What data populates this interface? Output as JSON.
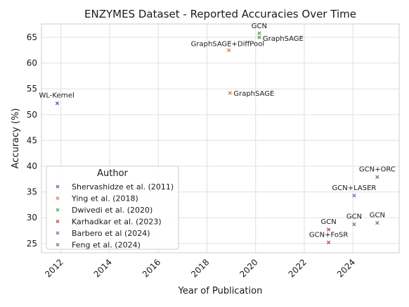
{
  "chart_data": {
    "type": "scatter",
    "title": "ENZYMES Dataset - Reported Accuracies Over Time",
    "xlabel": "Year of Publication",
    "ylabel": "Accuracy (%)",
    "xlim": [
      2011.2,
      2025.9
    ],
    "ylim": [
      23.2,
      67.6
    ],
    "x_ticks": [
      2012,
      2014,
      2016,
      2018,
      2020,
      2022,
      2024
    ],
    "y_ticks": [
      25,
      30,
      35,
      40,
      45,
      50,
      55,
      60,
      65
    ],
    "grid": true,
    "legend_title": "Author",
    "legend_position": "lower-left",
    "series": [
      {
        "name": "Shervashidze et al. (2011)",
        "color": "#4c72b0",
        "points": [
          {
            "x": 2011.85,
            "y": 52.2,
            "label": "WL-Kernel"
          }
        ]
      },
      {
        "name": "Ying et al. (2018)",
        "color": "#dd8452",
        "points": [
          {
            "x": 2018.9,
            "y": 62.5,
            "label": "GraphSAGE+DiffPool"
          },
          {
            "x": 2018.95,
            "y": 54.2,
            "label": "GraphSAGE"
          }
        ]
      },
      {
        "name": "Dwivedi et al. (2020)",
        "color": "#55a868",
        "points": [
          {
            "x": 2020.15,
            "y": 65.8,
            "label": "GCN"
          },
          {
            "x": 2020.15,
            "y": 65.0,
            "label": "GraphSAGE"
          }
        ]
      },
      {
        "name": "Karhadkar et al. (2023)",
        "color": "#c44e52",
        "points": [
          {
            "x": 2023.0,
            "y": 27.7,
            "label": "GCN"
          },
          {
            "x": 2023.0,
            "y": 25.2,
            "label": "GCN+FoSR"
          }
        ]
      },
      {
        "name": "Barbero et al (2024)",
        "color": "#8172b3",
        "points": [
          {
            "x": 2024.05,
            "y": 34.3,
            "label": "GCN+LASER"
          },
          {
            "x": 2024.05,
            "y": 28.7,
            "label": "GCN"
          }
        ]
      },
      {
        "name": "Feng et al. (2024)",
        "color": "#937860",
        "points": [
          {
            "x": 2025.0,
            "y": 37.9,
            "label": "GCN+ORC"
          },
          {
            "x": 2025.0,
            "y": 29.0,
            "label": "GCN"
          }
        ]
      }
    ]
  }
}
